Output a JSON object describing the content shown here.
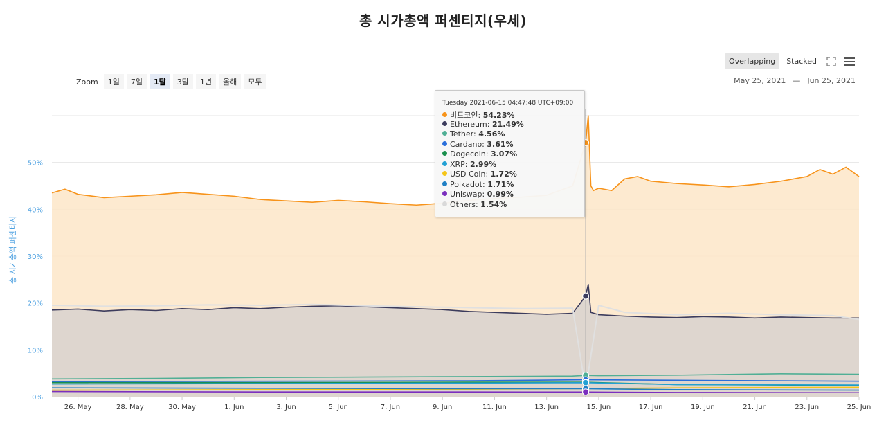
{
  "title": "총 시가총액 퍼센티지(우세)",
  "toolbar": {
    "overlapping_label": "Overlapping",
    "stacked_label": "Stacked",
    "fullscreen_icon": "fullscreen-icon",
    "menu_icon": "hamburger-menu-icon"
  },
  "zoom": {
    "label": "Zoom",
    "buttons": [
      "1일",
      "7일",
      "1달",
      "3달",
      "1년",
      "올해",
      "모두"
    ],
    "active": "1달"
  },
  "range": {
    "from": "May 25, 2021",
    "dash": "—",
    "to": "Jun 25, 2021"
  },
  "tooltip": {
    "header": "Tuesday 2021-06-15 04:47:48 UTC+09:00",
    "rows": [
      {
        "name": "비트코인",
        "value": "54.23%",
        "color": "#f7931a"
      },
      {
        "name": "Ethereum",
        "value": "21.49%",
        "color": "#3c3c5d"
      },
      {
        "name": "Tether",
        "value": "4.56%",
        "color": "#50af95"
      },
      {
        "name": "Cardano",
        "value": "3.61%",
        "color": "#2a6fdb"
      },
      {
        "name": "Dogecoin",
        "value": "3.07%",
        "color": "#1a8f4d"
      },
      {
        "name": "XRP",
        "value": "2.99%",
        "color": "#23a1d4"
      },
      {
        "name": "USD Coin",
        "value": "1.72%",
        "color": "#f5c518"
      },
      {
        "name": "Polkadot",
        "value": "1.71%",
        "color": "#1f7fc4"
      },
      {
        "name": "Uniswap",
        "value": "0.99%",
        "color": "#7b2fbe"
      },
      {
        "name": "Others",
        "value": "1.54%",
        "color": "#d9d9d9"
      }
    ]
  },
  "chart_data": {
    "type": "area",
    "title": "총 시가총액 퍼센티지(우세)",
    "ylabel": "총 시가총액 퍼센티지",
    "xlabel": "",
    "ylim": [
      0,
      60
    ],
    "y_ticks": [
      "0%",
      "10%",
      "20%",
      "30%",
      "40%",
      "50%"
    ],
    "x_ticks": [
      "26. May",
      "28. May",
      "30. May",
      "1. Jun",
      "3. Jun",
      "5. Jun",
      "7. Jun",
      "9. Jun",
      "11. Jun",
      "13. Jun",
      "15. Jun",
      "17. Jun",
      "19. Jun",
      "21. Jun",
      "23. Jun",
      "25. Jun"
    ],
    "x_range_days": [
      0,
      31
    ],
    "grid": true,
    "mode": "overlapping",
    "series": [
      {
        "name": "비트코인",
        "color": "#f7931a",
        "fill": "#fde6c8",
        "x": [
          0,
          0.5,
          1,
          2,
          3,
          4,
          5,
          6,
          7,
          8,
          9,
          10,
          11,
          12,
          13,
          14,
          15,
          16,
          17,
          18,
          19,
          20,
          20.5,
          20.6,
          20.7,
          20.8,
          21,
          21.5,
          22,
          22.5,
          23,
          24,
          25,
          26,
          27,
          28,
          29,
          29.5,
          30,
          30.5,
          31
        ],
        "y": [
          43.5,
          44.3,
          43.2,
          42.5,
          42.8,
          43.1,
          43.6,
          43.2,
          42.8,
          42.1,
          41.8,
          41.5,
          41.9,
          41.6,
          41.2,
          40.9,
          41.3,
          41.9,
          42.3,
          42.6,
          43.0,
          45.0,
          54.23,
          60.0,
          45.0,
          44.0,
          44.5,
          44.0,
          46.5,
          47.0,
          46.0,
          45.5,
          45.2,
          44.8,
          45.3,
          46.0,
          47.0,
          48.5,
          47.5,
          49.0,
          47.0
        ]
      },
      {
        "name": "Ethereum",
        "color": "#3c3c5d",
        "fill": "#d8d2cf",
        "x": [
          0,
          1,
          2,
          3,
          4,
          5,
          6,
          7,
          8,
          9,
          10,
          11,
          12,
          13,
          14,
          15,
          16,
          17,
          18,
          19,
          20,
          20.5,
          20.6,
          20.7,
          21,
          22,
          23,
          24,
          25,
          26,
          27,
          28,
          29,
          30,
          31
        ],
        "y": [
          18.5,
          18.7,
          18.3,
          18.6,
          18.4,
          18.8,
          18.6,
          19.0,
          18.8,
          19.1,
          19.3,
          19.4,
          19.2,
          19.0,
          18.8,
          18.6,
          18.2,
          18.0,
          17.8,
          17.6,
          17.8,
          21.49,
          24.0,
          18.0,
          17.5,
          17.2,
          17.0,
          16.9,
          17.1,
          17.0,
          16.8,
          17.0,
          16.9,
          16.8,
          16.8
        ]
      },
      {
        "name": "Others",
        "color": "#e0e0e0",
        "fill": "none",
        "x": [
          0,
          2,
          4,
          6,
          8,
          10,
          12,
          14,
          16,
          18,
          20,
          20.5,
          21,
          22,
          24,
          26,
          28,
          30,
          31
        ],
        "y": [
          19.5,
          19.3,
          19.4,
          19.6,
          19.5,
          19.7,
          19.4,
          19.2,
          19.0,
          18.8,
          18.9,
          1.54,
          19.5,
          18.0,
          17.5,
          17.8,
          17.5,
          17.3,
          16.5
        ]
      },
      {
        "name": "Tether",
        "color": "#50af95",
        "fill": "none",
        "x": [
          0,
          4,
          8,
          12,
          16,
          20,
          20.5,
          21,
          24,
          28,
          31
        ],
        "y": [
          3.8,
          3.9,
          4.1,
          4.2,
          4.3,
          4.4,
          4.56,
          4.5,
          4.6,
          4.9,
          4.8
        ]
      },
      {
        "name": "Cardano",
        "color": "#2a6fdb",
        "fill": "none",
        "x": [
          0,
          8,
          16,
          20.5,
          24,
          31
        ],
        "y": [
          3.2,
          3.3,
          3.4,
          3.61,
          3.5,
          3.3
        ]
      },
      {
        "name": "Dogecoin",
        "color": "#1a8f4d",
        "fill": "none",
        "x": [
          0,
          8,
          16,
          20.5,
          24,
          31
        ],
        "y": [
          3.0,
          3.0,
          3.1,
          3.07,
          2.6,
          2.4
        ]
      },
      {
        "name": "XRP",
        "color": "#23a1d4",
        "fill": "none",
        "x": [
          0,
          8,
          16,
          20.5,
          24,
          31
        ],
        "y": [
          2.7,
          2.8,
          2.9,
          2.99,
          2.6,
          2.5
        ]
      },
      {
        "name": "USD Coin",
        "color": "#f5c518",
        "fill": "none",
        "x": [
          0,
          8,
          16,
          20.5,
          24,
          31
        ],
        "y": [
          1.4,
          1.5,
          1.6,
          1.72,
          1.9,
          2.0
        ]
      },
      {
        "name": "Polkadot",
        "color": "#1f7fc4",
        "fill": "none",
        "x": [
          0,
          8,
          16,
          20.5,
          24,
          31
        ],
        "y": [
          1.9,
          1.8,
          1.7,
          1.71,
          1.5,
          1.4
        ]
      },
      {
        "name": "Uniswap",
        "color": "#7b2fbe",
        "fill": "none",
        "x": [
          0,
          8,
          16,
          20.5,
          24,
          31
        ],
        "y": [
          1.1,
          1.0,
          1.0,
          0.99,
          0.9,
          0.85
        ]
      }
    ],
    "crosshair_x": 20.5,
    "legend": "tooltip"
  }
}
